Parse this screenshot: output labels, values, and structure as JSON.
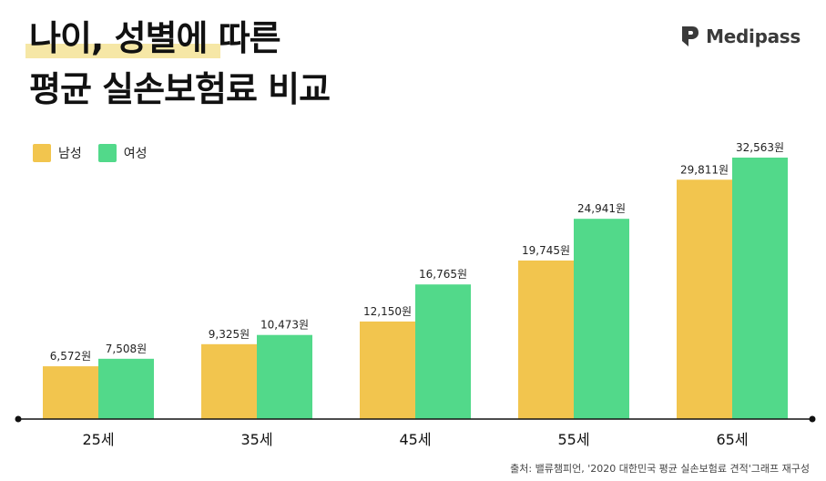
{
  "title": {
    "line1": "나이, 성별에 따른",
    "line2": "평균 실손보험료 비교"
  },
  "brand": {
    "name": "Medipass",
    "logo_icon": "p-logo-icon"
  },
  "source": "출처: 밸류챔피언, '2020 대한민국 평균 실손보험료 견적'그래프 재구성",
  "chart_data": {
    "type": "bar",
    "categories": [
      "25세",
      "35세",
      "45세",
      "55세",
      "65세"
    ],
    "series": [
      {
        "name": "남성",
        "color": "#f2c54e",
        "values": [
          6572,
          9325,
          12150,
          19745,
          29811
        ],
        "labels": [
          "6,572원",
          "9,325원",
          "12,150원",
          "19,745원",
          "29,811원"
        ]
      },
      {
        "name": "여성",
        "color": "#52d98a",
        "values": [
          7508,
          10473,
          16765,
          24941,
          32563
        ],
        "labels": [
          "7,508원",
          "10,473원",
          "16,765원",
          "24,941원",
          "32,563원"
        ]
      }
    ],
    "unit": "원",
    "ylim": [
      0,
      35000
    ],
    "grid": false,
    "legend": "top-left"
  }
}
